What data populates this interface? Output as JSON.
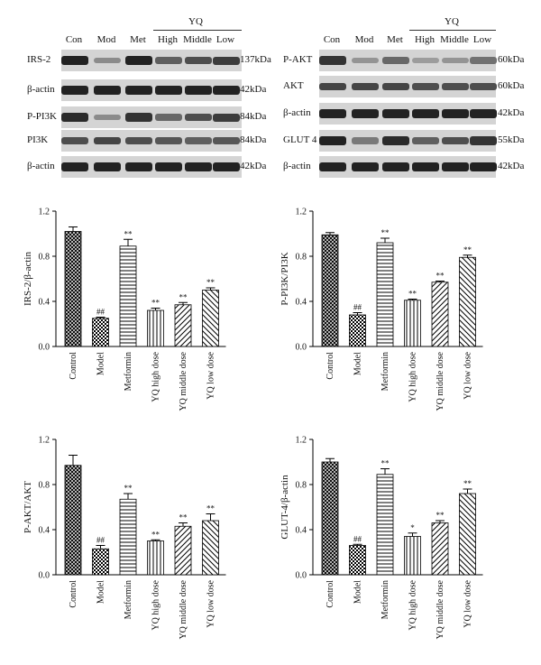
{
  "western_blot": {
    "left": {
      "lanes": [
        "Con",
        "Mod",
        "Met",
        "High",
        "Middle",
        "Low"
      ],
      "group_label": "YQ",
      "rows": [
        {
          "name": "IRS-2",
          "kda": "137kDa",
          "intensity": [
            0.95,
            0.35,
            0.95,
            0.6,
            0.7,
            0.8
          ]
        },
        {
          "name": "β-actin",
          "kda": "42kDa",
          "intensity": [
            0.95,
            0.95,
            0.95,
            0.95,
            0.95,
            0.95
          ]
        },
        {
          "name": "P-PI3K",
          "kda": "84kDa",
          "intensity": [
            0.9,
            0.35,
            0.85,
            0.55,
            0.7,
            0.8
          ]
        },
        {
          "name": "PI3K",
          "kda": "84kDa",
          "intensity": [
            0.7,
            0.75,
            0.7,
            0.65,
            0.6,
            0.65
          ]
        },
        {
          "name": "β-actin",
          "kda": "42kDa",
          "intensity": [
            0.95,
            0.95,
            0.95,
            0.95,
            0.95,
            0.95
          ]
        }
      ]
    },
    "right": {
      "lanes": [
        "Con",
        "Mod",
        "Met",
        "High",
        "Middle",
        "Low"
      ],
      "group_label": "YQ",
      "rows": [
        {
          "name": "P-AKT",
          "kda": "60kDa",
          "intensity": [
            0.85,
            0.3,
            0.55,
            0.25,
            0.3,
            0.5
          ]
        },
        {
          "name": "AKT",
          "kda": "60kDa",
          "intensity": [
            0.75,
            0.75,
            0.75,
            0.7,
            0.7,
            0.7
          ]
        },
        {
          "name": "β-actin",
          "kda": "42kDa",
          "intensity": [
            0.95,
            0.95,
            0.95,
            0.95,
            0.95,
            0.95
          ]
        },
        {
          "name": "GLUT 4",
          "kda": "55kDa",
          "intensity": [
            0.95,
            0.45,
            0.9,
            0.6,
            0.7,
            0.85
          ]
        },
        {
          "name": "β-actin",
          "kda": "42kDa",
          "intensity": [
            0.95,
            0.95,
            0.95,
            0.95,
            0.95,
            0.95
          ]
        }
      ]
    }
  },
  "chart_data": [
    {
      "type": "bar",
      "ylabel": "IRS-2/β-actin",
      "ylim": [
        0,
        1.2
      ],
      "yticks": [
        "0.0",
        "0.4",
        "0.8",
        "1.2"
      ],
      "categories": [
        "Control",
        "Model",
        "Metformin",
        "YQ high dose",
        "YQ middle dose",
        "YQ low dose"
      ],
      "values": [
        1.02,
        0.25,
        0.89,
        0.32,
        0.37,
        0.5
      ],
      "errors": [
        0.04,
        0.01,
        0.06,
        0.02,
        0.02,
        0.02
      ],
      "annotations": [
        "",
        "##",
        "**",
        "**",
        "**",
        "**"
      ]
    },
    {
      "type": "bar",
      "ylabel": "P-PI3K/PI3K",
      "ylim": [
        0,
        1.2
      ],
      "yticks": [
        "0.0",
        "0.4",
        "0.8",
        "1.2"
      ],
      "categories": [
        "Control",
        "Model",
        "Metformin",
        "YQ high dose",
        "YQ middle dose",
        "YQ low dose"
      ],
      "values": [
        0.99,
        0.28,
        0.92,
        0.41,
        0.57,
        0.79
      ],
      "errors": [
        0.02,
        0.02,
        0.04,
        0.01,
        0.01,
        0.02
      ],
      "annotations": [
        "",
        "##",
        "**",
        "**",
        "**",
        "**"
      ]
    },
    {
      "type": "bar",
      "ylabel": "P-AKT/AKT",
      "ylim": [
        0,
        1.2
      ],
      "yticks": [
        "0.0",
        "0.4",
        "0.8",
        "1.2"
      ],
      "categories": [
        "Control",
        "Model",
        "Metformin",
        "YQ high dose",
        "YQ middle dose",
        "YQ low dose"
      ],
      "values": [
        0.97,
        0.23,
        0.67,
        0.3,
        0.43,
        0.48
      ],
      "errors": [
        0.09,
        0.03,
        0.05,
        0.01,
        0.03,
        0.06
      ],
      "annotations": [
        "",
        "##",
        "**",
        "**",
        "**",
        "**"
      ]
    },
    {
      "type": "bar",
      "ylabel": "GLUT-4/β-actin",
      "ylim": [
        0,
        1.2
      ],
      "yticks": [
        "0.0",
        "0.4",
        "0.8",
        "1.2"
      ],
      "categories": [
        "Control",
        "Model",
        "Metformin",
        "YQ high dose",
        "YQ middle dose",
        "YQ low dose"
      ],
      "values": [
        1.0,
        0.26,
        0.89,
        0.34,
        0.46,
        0.72
      ],
      "errors": [
        0.03,
        0.01,
        0.05,
        0.03,
        0.02,
        0.04
      ],
      "annotations": [
        "",
        "##",
        "**",
        "*",
        "**",
        "**"
      ]
    }
  ]
}
